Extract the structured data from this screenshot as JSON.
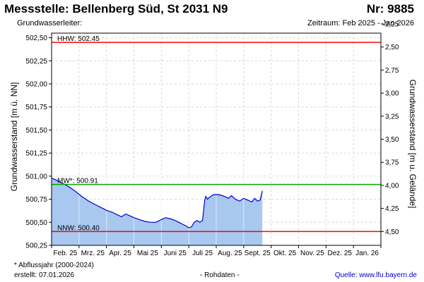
{
  "header": {
    "title": "Messstelle: Bellenberg Süd, St 2031 N9",
    "number": "Nr: 9885",
    "aquifer_label": "Grundwasserleiter:",
    "period": "Zeitraum: Feb 2025 - Jan 2026"
  },
  "footer": {
    "note": "* Abflussjahr (2000-2024)",
    "created": "erstellt:  07.01.2026",
    "raw": "- Rohdaten -",
    "source_label": "Quelle: ",
    "source_link": "www.lfu.bayern.de"
  },
  "chart_data": {
    "type": "area",
    "ylabel_left": "Grundwasserstand [m ü. NN]",
    "ylabel_right": "Grundwasserstand [m u. Gelände]",
    "ylim": [
      500.25,
      502.55
    ],
    "yticks_left": [
      500.25,
      500.5,
      500.75,
      501.0,
      501.25,
      501.5,
      501.75,
      502.0,
      502.25,
      502.5
    ],
    "yticks_left_labels": [
      "500,25",
      "500,50",
      "500,75",
      "501,00",
      "501,25",
      "501,50",
      "501,75",
      "502,00",
      "502,25",
      "502,50"
    ],
    "yticks_right": [
      2.25,
      2.5,
      2.75,
      3.0,
      3.25,
      3.5,
      3.75,
      4.0,
      4.25,
      4.5
    ],
    "yticks_right_labels": [
      "2,25",
      "2,50",
      "2,75",
      "3,00",
      "3,25",
      "3,50",
      "3,75",
      "4,00",
      "4,25",
      "4,50"
    ],
    "ground_level": 504.9,
    "x_labels": [
      "Feb. 25",
      "Mrz. 25",
      "Apr. 25",
      "Mai 25",
      "Juni 25",
      "Juli 25",
      "Aug. 25",
      "Sept. 25",
      "Okt. 25",
      "Nov. 25",
      "Dez. 25",
      "Jan. 26"
    ],
    "x_months": 12,
    "grid": true,
    "reference_lines": [
      {
        "label": "HHW: 502.45",
        "value": 502.45,
        "color": "#ff0000"
      },
      {
        "label": "MW*: 500.91",
        "value": 500.91,
        "color": "#00aa00"
      },
      {
        "label": "NNW: 500.40",
        "value": 500.4,
        "color": "#ff0000"
      }
    ],
    "series": [
      {
        "line_color": "#0000cc",
        "fill_color": "#a8c8f0",
        "points": [
          [
            0.0,
            500.98
          ],
          [
            0.15,
            500.96
          ],
          [
            0.35,
            500.93
          ],
          [
            0.6,
            500.89
          ],
          [
            0.85,
            500.84
          ],
          [
            1.1,
            500.78
          ],
          [
            1.35,
            500.73
          ],
          [
            1.6,
            500.69
          ],
          [
            1.8,
            500.66
          ],
          [
            2.0,
            500.63
          ],
          [
            2.2,
            500.61
          ],
          [
            2.4,
            500.58
          ],
          [
            2.55,
            500.56
          ],
          [
            2.7,
            500.59
          ],
          [
            2.85,
            500.57
          ],
          [
            3.0,
            500.55
          ],
          [
            3.2,
            500.53
          ],
          [
            3.4,
            500.51
          ],
          [
            3.6,
            500.5
          ],
          [
            3.8,
            500.5
          ],
          [
            4.0,
            500.53
          ],
          [
            4.15,
            500.55
          ],
          [
            4.3,
            500.54
          ],
          [
            4.5,
            500.52
          ],
          [
            4.7,
            500.49
          ],
          [
            4.9,
            500.46
          ],
          [
            5.0,
            500.44
          ],
          [
            5.1,
            500.45
          ],
          [
            5.2,
            500.5
          ],
          [
            5.3,
            500.52
          ],
          [
            5.4,
            500.5
          ],
          [
            5.5,
            500.52
          ],
          [
            5.58,
            500.74
          ],
          [
            5.62,
            500.78
          ],
          [
            5.68,
            500.75
          ],
          [
            5.75,
            500.77
          ],
          [
            5.9,
            500.8
          ],
          [
            6.1,
            500.8
          ],
          [
            6.3,
            500.78
          ],
          [
            6.45,
            500.76
          ],
          [
            6.55,
            500.79
          ],
          [
            6.7,
            500.75
          ],
          [
            6.85,
            500.73
          ],
          [
            7.0,
            500.76
          ],
          [
            7.15,
            500.74
          ],
          [
            7.3,
            500.72
          ],
          [
            7.4,
            500.76
          ],
          [
            7.5,
            500.73
          ],
          [
            7.6,
            500.74
          ],
          [
            7.68,
            500.84
          ]
        ]
      }
    ]
  }
}
